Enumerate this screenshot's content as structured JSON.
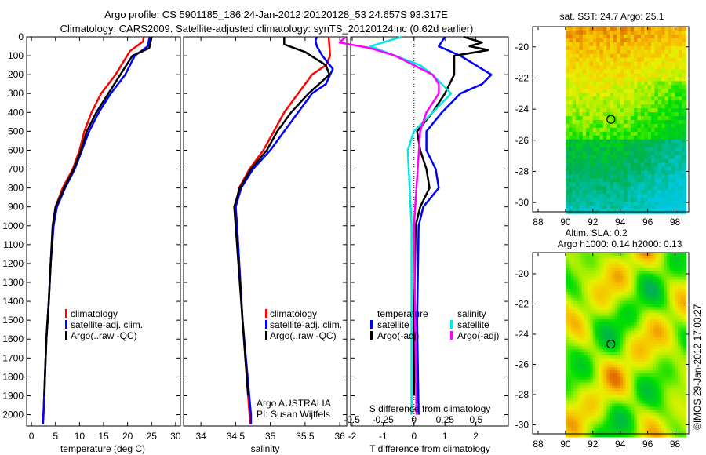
{
  "title": {
    "line1": "Argo profile: CS 5901185_186 24-Jan-2012 20120128_53 24.657S 93.317E",
    "line2": "Climatology: CARS2009. Satellite-adjusted climatology: synTS_20120124.nc (0.62d earlier)"
  },
  "credit": "©IMOS 29-Jan-2012 17:03:27",
  "colors": {
    "climatology": "#ff0000",
    "satellite": "#0000ff",
    "argo": "#000000",
    "sal_satellite": "#00e8e8",
    "sal_argo": "#ff00ff"
  },
  "chart_data": [
    {
      "type": "line",
      "name": "temperature",
      "xlabel": "temperature (deg C)",
      "ylabel": "depth",
      "xlim": [
        -1,
        31
      ],
      "ylim": [
        2060,
        0
      ],
      "xticks": [
        0,
        5,
        10,
        15,
        20,
        25,
        30
      ],
      "yticks": [
        0,
        100,
        200,
        300,
        400,
        500,
        600,
        700,
        800,
        900,
        1000,
        1100,
        1200,
        1300,
        1400,
        1500,
        1600,
        1700,
        1800,
        1900,
        2000
      ],
      "legend": [
        "climatology",
        "satellite-adj. clim.",
        "Argo(..raw -QC)"
      ],
      "series": [
        {
          "name": "climatology",
          "color": "#ff0000",
          "depth": [
            0,
            25,
            75,
            200,
            300,
            400,
            500,
            600,
            700,
            800,
            900,
            1000,
            1200,
            1400,
            1600,
            1800,
            2000,
            2050
          ],
          "values": [
            23.4,
            23.2,
            20.5,
            17.5,
            14.5,
            12.5,
            11,
            10,
            8.6,
            6.5,
            5,
            4.6,
            4,
            3.6,
            3.1,
            2.8,
            2.5,
            2.4
          ]
        },
        {
          "name": "satellite-adj. clim.",
          "color": "#0000ff",
          "depth": [
            0,
            50,
            100,
            200,
            300,
            400,
            500,
            600,
            700,
            800,
            900,
            1000,
            1200,
            1400,
            1600,
            1800,
            2000,
            2050
          ],
          "values": [
            24.6,
            24.2,
            21.5,
            19.5,
            16.5,
            14,
            12,
            10.5,
            9,
            7,
            5.3,
            4.6,
            4,
            3.6,
            3.1,
            2.8,
            2.5,
            2.4
          ]
        },
        {
          "name": "Argo(..raw -QC)",
          "color": "#000000",
          "depth": [
            0,
            60,
            100,
            200,
            300,
            400,
            500,
            600,
            700,
            800,
            900,
            1000,
            1200,
            1400,
            1600,
            1800,
            1900
          ],
          "values": [
            25,
            24.5,
            21,
            18.5,
            16,
            13.5,
            11.5,
            10.3,
            8.8,
            6.8,
            5,
            4.4,
            4,
            3.6,
            3.1,
            2.8,
            2.7
          ]
        }
      ]
    },
    {
      "type": "line",
      "name": "salinity",
      "xlabel": "salinity",
      "xlim": [
        33.75,
        36.1
      ],
      "ylim": [
        2060,
        0
      ],
      "xticks": [
        34,
        34.5,
        35,
        35.5,
        36
      ],
      "legend": [
        "climatology",
        "satellite-adj. clim.",
        "Argo(..raw -QC)"
      ],
      "annotation": [
        "Argo AUSTRALIA",
        "PI: Susan Wijffels"
      ],
      "series": [
        {
          "name": "climatology",
          "color": "#ff0000",
          "depth": [
            0,
            100,
            150,
            200,
            300,
            400,
            500,
            600,
            700,
            800,
            900,
            1000,
            1500,
            2000,
            2050
          ],
          "values": [
            35.84,
            35.86,
            35.8,
            35.6,
            35.4,
            35.2,
            35.05,
            34.9,
            34.7,
            34.55,
            34.5,
            34.52,
            34.6,
            34.7,
            34.71
          ]
        },
        {
          "name": "satellite-adj. clim.",
          "color": "#0000ff",
          "depth": [
            0,
            20,
            50,
            100,
            170,
            250,
            300,
            400,
            500,
            600,
            700,
            800,
            900,
            1000,
            1500,
            2000,
            2050
          ],
          "values": [
            35.67,
            35.65,
            35.67,
            35.75,
            35.9,
            35.8,
            35.6,
            35.4,
            35.2,
            35.0,
            34.75,
            34.58,
            34.5,
            34.52,
            34.6,
            34.72,
            34.72
          ]
        },
        {
          "name": "Argo(..raw -QC)",
          "color": "#000000",
          "depth": [
            0,
            40,
            80,
            150,
            200,
            300,
            400,
            500,
            600,
            700,
            800,
            900,
            1000,
            1500,
            1900
          ],
          "values": [
            35.2,
            35.2,
            35.5,
            35.8,
            35.85,
            35.55,
            35.3,
            35.1,
            34.95,
            34.72,
            34.56,
            34.48,
            34.5,
            34.6,
            34.68
          ]
        }
      ]
    },
    {
      "type": "line",
      "name": "differences",
      "xlabel": "T difference from climatology",
      "x2label": "S difference from climatology",
      "xlim": [
        -2.05,
        3.05
      ],
      "x2lim": [
        -0.51,
        0.76
      ],
      "xticks": [
        -2,
        -1,
        0,
        1,
        2
      ],
      "x2ticks": [
        -0.5,
        -0.25,
        0,
        0.25,
        0.5
      ],
      "x2ticklabels": [
        "-0.5",
        "-0.25",
        "0",
        "0.25",
        "0.5"
      ],
      "legend": {
        "temperature_title": "temperature",
        "salinity_title": "salinity",
        "items": [
          "satellite",
          "Argo(-adj)",
          "satellite",
          "Argo(-adj)"
        ]
      },
      "series": [
        {
          "name": "T satellite",
          "axis": "T",
          "color": "#0000ff",
          "depth": [
            0,
            50,
            100,
            200,
            250,
            300,
            400,
            500,
            600,
            700,
            800,
            900,
            1000,
            1500,
            2000
          ],
          "values": [
            1,
            0.8,
            1.5,
            2.5,
            2.2,
            1.5,
            0.9,
            0.4,
            0.4,
            0.7,
            0.8,
            0.3,
            0.15,
            0.1,
            0.15
          ]
        },
        {
          "name": "T Argo(-adj)",
          "axis": "T",
          "color": "#000000",
          "depth": [
            0,
            30,
            50,
            70,
            100,
            200,
            300,
            400,
            500,
            600,
            700,
            800,
            900,
            1000,
            1500,
            1900
          ],
          "values": [
            1.6,
            2.2,
            1.8,
            2.4,
            1.3,
            1.3,
            1.0,
            0.6,
            0.1,
            0.2,
            0.4,
            0.5,
            0.2,
            0.05,
            0,
            0
          ]
        },
        {
          "name": "S satellite",
          "axis": "S",
          "color": "#00e8e8",
          "depth": [
            0,
            50,
            100,
            150,
            200,
            300,
            400,
            500,
            600,
            1000,
            2000
          ],
          "values": [
            -0.1,
            -0.35,
            -0.15,
            0.05,
            0.15,
            0.3,
            0.15,
            0,
            -0.05,
            -0.02,
            -0.02
          ]
        },
        {
          "name": "S Argo(-adj)",
          "axis": "S",
          "color": "#ff00ff",
          "depth": [
            0,
            30,
            60,
            100,
            150,
            200,
            250,
            300,
            400,
            500,
            700,
            1000,
            2000
          ],
          "values": [
            -0.55,
            -0.6,
            -0.35,
            -0.15,
            0,
            0.15,
            0.2,
            0.2,
            0.1,
            0.05,
            0.03,
            0,
            0.02
          ]
        }
      ]
    },
    {
      "type": "heatmap",
      "name": "sst-map",
      "title": "sat. SST: 24.7 Argo: 25.1",
      "xlim": [
        87.6,
        99
      ],
      "ylim": [
        -30.6,
        -18.7
      ],
      "xticks": [
        88,
        90,
        92,
        94,
        96,
        98
      ],
      "yticks": [
        -20,
        -22,
        -24,
        -26,
        -28,
        -30
      ],
      "argo_position": {
        "lon": 93.317,
        "lat": -24.657
      }
    },
    {
      "type": "heatmap",
      "name": "sla-map",
      "title": "Altim. SLA: 0.2",
      "subtitle": "Argo h1000: 0.14 h2000: 0.13",
      "xlim": [
        87.6,
        99
      ],
      "ylim": [
        -30.6,
        -18.6
      ],
      "xticks": [
        88,
        90,
        92,
        94,
        96,
        98
      ],
      "yticks": [
        -20,
        -22,
        -24,
        -26,
        -28,
        -30
      ],
      "argo_position": {
        "lon": 93.317,
        "lat": -24.657
      }
    }
  ]
}
